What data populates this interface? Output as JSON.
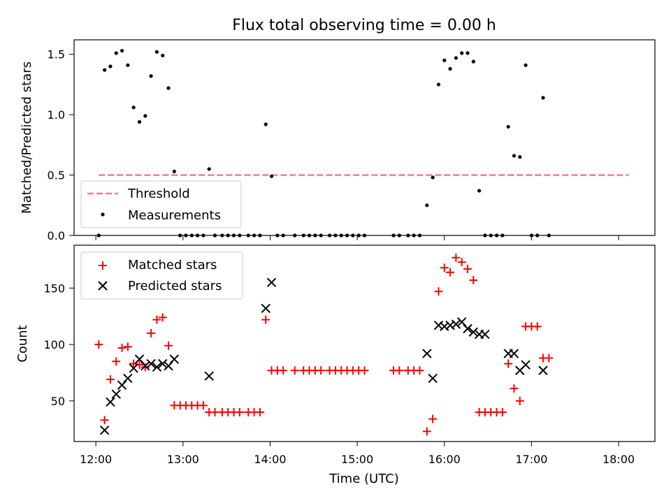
{
  "figure": {
    "title": "Flux total observing time = 0.00 h"
  },
  "chart_data": [
    {
      "type": "scatter",
      "panel": "top",
      "title": "Flux total observing time = 0.00 h",
      "xlabel": "",
      "ylabel": "Matched/Predicted stars",
      "xlim": [
        "11:45",
        "18:25"
      ],
      "ylim": [
        0,
        1.62
      ],
      "yticks": [
        0.0,
        0.5,
        1.0,
        1.5
      ],
      "ytick_labels": [
        "0.0",
        "0.5",
        "1.0",
        "1.5"
      ],
      "legend_position": "lower-left",
      "grid": false,
      "series": [
        {
          "name": "Threshold",
          "kind": "dashed-line",
          "color": "#f08080",
          "points": [
            [
              "12:02",
              0.5
            ],
            [
              "18:07",
              0.5
            ]
          ]
        },
        {
          "name": "Measurements",
          "kind": "dots",
          "color": "#000000",
          "points": [
            [
              "12:02",
              0.0
            ],
            [
              "12:06",
              1.37
            ],
            [
              "12:10",
              1.4
            ],
            [
              "12:14",
              1.51
            ],
            [
              "12:18",
              1.53
            ],
            [
              "12:22",
              1.41
            ],
            [
              "12:26",
              1.06
            ],
            [
              "12:30",
              0.94
            ],
            [
              "12:34",
              0.99
            ],
            [
              "12:38",
              1.32
            ],
            [
              "12:42",
              1.52
            ],
            [
              "12:46",
              1.49
            ],
            [
              "12:50",
              1.22
            ],
            [
              "12:54",
              0.53
            ],
            [
              "12:58",
              0.0
            ],
            [
              "13:02",
              0.0
            ],
            [
              "13:06",
              0.0
            ],
            [
              "13:10",
              0.0
            ],
            [
              "13:14",
              0.0
            ],
            [
              "13:18",
              0.55
            ],
            [
              "13:22",
              0.0
            ],
            [
              "13:27",
              0.0
            ],
            [
              "13:31",
              0.0
            ],
            [
              "13:35",
              0.0
            ],
            [
              "13:39",
              0.0
            ],
            [
              "13:45",
              0.0
            ],
            [
              "13:49",
              0.0
            ],
            [
              "13:53",
              0.0
            ],
            [
              "13:57",
              0.92
            ],
            [
              "14:01",
              0.49
            ],
            [
              "14:05",
              0.0
            ],
            [
              "14:09",
              0.0
            ],
            [
              "14:17",
              0.0
            ],
            [
              "14:23",
              0.0
            ],
            [
              "14:27",
              0.0
            ],
            [
              "14:31",
              0.0
            ],
            [
              "14:35",
              0.0
            ],
            [
              "14:41",
              0.0
            ],
            [
              "14:45",
              0.0
            ],
            [
              "14:49",
              0.0
            ],
            [
              "14:53",
              0.0
            ],
            [
              "14:57",
              0.0
            ],
            [
              "15:01",
              0.0
            ],
            [
              "15:05",
              0.0
            ],
            [
              "15:25",
              0.0
            ],
            [
              "15:29",
              0.0
            ],
            [
              "15:35",
              0.0
            ],
            [
              "15:39",
              0.0
            ],
            [
              "15:43",
              0.0
            ],
            [
              "15:48",
              0.25
            ],
            [
              "15:52",
              0.48
            ],
            [
              "15:56",
              1.25
            ],
            [
              "16:00",
              1.45
            ],
            [
              "16:04",
              1.38
            ],
            [
              "16:08",
              1.47
            ],
            [
              "16:12",
              1.51
            ],
            [
              "16:16",
              1.51
            ],
            [
              "16:20",
              1.44
            ],
            [
              "16:24",
              0.37
            ],
            [
              "16:28",
              0.0
            ],
            [
              "16:32",
              0.0
            ],
            [
              "16:36",
              0.0
            ],
            [
              "16:40",
              0.0
            ],
            [
              "16:44",
              0.9
            ],
            [
              "16:48",
              0.66
            ],
            [
              "16:52",
              0.65
            ],
            [
              "16:56",
              1.41
            ],
            [
              "17:00",
              0.0
            ],
            [
              "17:04",
              0.0
            ],
            [
              "17:08",
              1.14
            ],
            [
              "17:12",
              0.0
            ]
          ]
        }
      ]
    },
    {
      "type": "scatter",
      "panel": "bottom",
      "xlabel": "Time (UTC)",
      "ylabel": "Count",
      "xlim": [
        "11:45",
        "18:25"
      ],
      "ylim": [
        14,
        188
      ],
      "xticks": [
        "12:00",
        "13:00",
        "14:00",
        "15:00",
        "16:00",
        "17:00",
        "18:00"
      ],
      "yticks": [
        50,
        100,
        150
      ],
      "ytick_labels": [
        "50",
        "100",
        "150"
      ],
      "legend_position": "upper-left",
      "grid": false,
      "series": [
        {
          "name": "Matched stars",
          "marker": "plus",
          "color": "#ff0000",
          "points": [
            [
              "12:02",
              100
            ],
            [
              "12:06",
              33
            ],
            [
              "12:10",
              69
            ],
            [
              "12:14",
              85
            ],
            [
              "12:18",
              97
            ],
            [
              "12:22",
              98
            ],
            [
              "12:26",
              83
            ],
            [
              "12:30",
              82
            ],
            [
              "12:34",
              80
            ],
            [
              "12:38",
              110
            ],
            [
              "12:42",
              122
            ],
            [
              "12:46",
              124
            ],
            [
              "12:50",
              99
            ],
            [
              "12:54",
              46
            ],
            [
              "12:58",
              46
            ],
            [
              "13:02",
              46
            ],
            [
              "13:06",
              46
            ],
            [
              "13:10",
              46
            ],
            [
              "13:14",
              46
            ],
            [
              "13:18",
              40
            ],
            [
              "13:22",
              40
            ],
            [
              "13:27",
              40
            ],
            [
              "13:31",
              40
            ],
            [
              "13:35",
              40
            ],
            [
              "13:39",
              40
            ],
            [
              "13:45",
              40
            ],
            [
              "13:49",
              40
            ],
            [
              "13:53",
              40
            ],
            [
              "13:57",
              122
            ],
            [
              "14:01",
              77
            ],
            [
              "14:05",
              77
            ],
            [
              "14:09",
              77
            ],
            [
              "14:17",
              77
            ],
            [
              "14:23",
              77
            ],
            [
              "14:27",
              77
            ],
            [
              "14:31",
              77
            ],
            [
              "14:35",
              77
            ],
            [
              "14:41",
              77
            ],
            [
              "14:45",
              77
            ],
            [
              "14:49",
              77
            ],
            [
              "14:53",
              77
            ],
            [
              "14:57",
              77
            ],
            [
              "15:01",
              77
            ],
            [
              "15:05",
              77
            ],
            [
              "15:25",
              77
            ],
            [
              "15:29",
              77
            ],
            [
              "15:35",
              77
            ],
            [
              "15:39",
              77
            ],
            [
              "15:43",
              77
            ],
            [
              "15:48",
              23
            ],
            [
              "15:52",
              34
            ],
            [
              "15:56",
              147
            ],
            [
              "16:00",
              168
            ],
            [
              "16:04",
              164
            ],
            [
              "16:08",
              177
            ],
            [
              "16:12",
              173
            ],
            [
              "16:16",
              167
            ],
            [
              "16:20",
              157
            ],
            [
              "16:24",
              40
            ],
            [
              "16:28",
              40
            ],
            [
              "16:32",
              40
            ],
            [
              "16:36",
              40
            ],
            [
              "16:40",
              40
            ],
            [
              "16:44",
              83
            ],
            [
              "16:48",
              61
            ],
            [
              "16:52",
              50
            ],
            [
              "16:56",
              116
            ],
            [
              "17:00",
              116
            ],
            [
              "17:04",
              116
            ],
            [
              "17:08",
              88
            ],
            [
              "17:12",
              88
            ]
          ]
        },
        {
          "name": "Predicted stars",
          "marker": "x",
          "color": "#000000",
          "points": [
            [
              "12:06",
              24
            ],
            [
              "12:10",
              49
            ],
            [
              "12:14",
              56
            ],
            [
              "12:18",
              64
            ],
            [
              "12:22",
              70
            ],
            [
              "12:26",
              79
            ],
            [
              "12:30",
              87
            ],
            [
              "12:34",
              81
            ],
            [
              "12:38",
              83
            ],
            [
              "12:42",
              80
            ],
            [
              "12:46",
              83
            ],
            [
              "12:50",
              81
            ],
            [
              "12:54",
              87
            ],
            [
              "13:18",
              72
            ],
            [
              "13:57",
              132
            ],
            [
              "14:01",
              155
            ],
            [
              "15:48",
              92
            ],
            [
              "15:52",
              70
            ],
            [
              "15:56",
              117
            ],
            [
              "16:00",
              116
            ],
            [
              "16:04",
              117
            ],
            [
              "16:08",
              118
            ],
            [
              "16:12",
              120
            ],
            [
              "16:16",
              114
            ],
            [
              "16:20",
              111
            ],
            [
              "16:24",
              109
            ],
            [
              "16:28",
              109
            ],
            [
              "16:44",
              92
            ],
            [
              "16:48",
              92
            ],
            [
              "16:52",
              77
            ],
            [
              "16:56",
              82
            ],
            [
              "17:08",
              77
            ]
          ]
        }
      ]
    }
  ]
}
